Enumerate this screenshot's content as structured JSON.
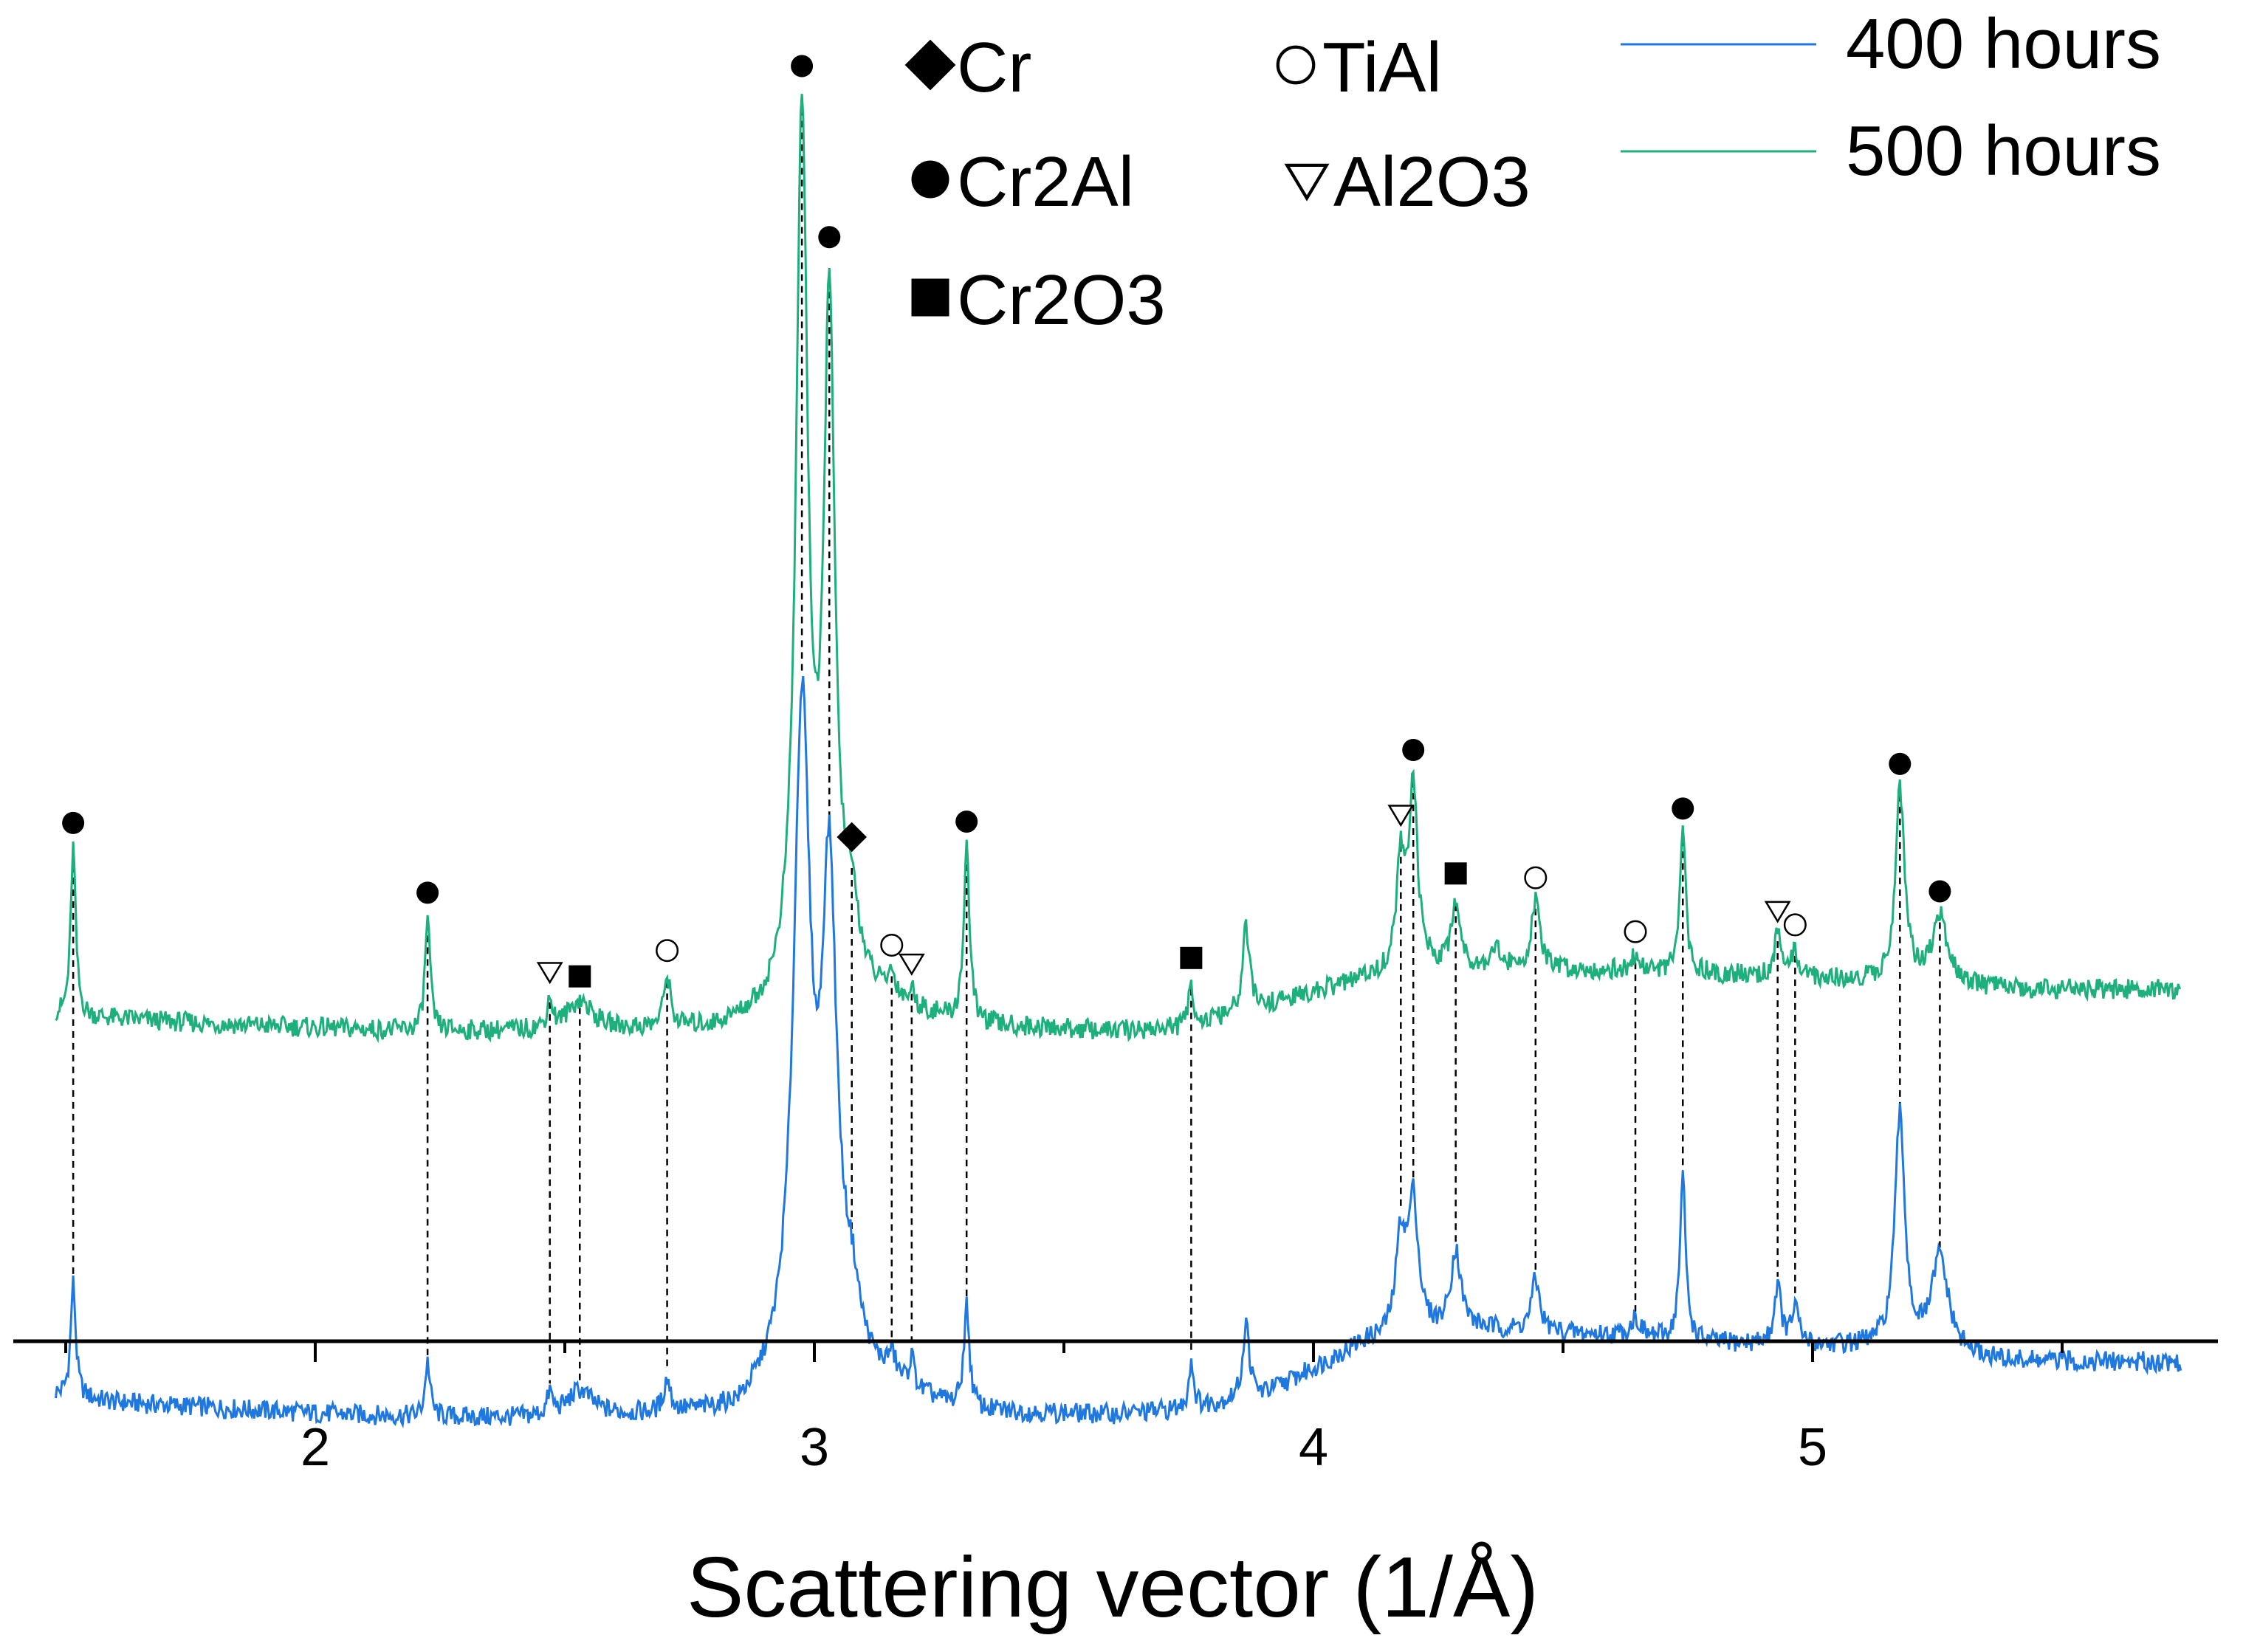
{
  "chart_data": {
    "type": "line",
    "title": "",
    "xlabel": "Scattering vector (1/Å)",
    "ylabel": "",
    "xlim": [
      1.45,
      5.75
    ],
    "x_ticks": [
      "2",
      "3",
      "4",
      "5"
    ],
    "y_axis_shown": false,
    "grid": false,
    "legend_placement": "top-right",
    "baseline_step": 0.01,
    "phases": [
      {
        "name": "Cr",
        "symbol": "diamond"
      },
      {
        "name": "TiAl",
        "symbol": "circle-open"
      },
      {
        "name": "Cr2Al",
        "symbol": "circle-filled"
      },
      {
        "name": "Al2O3",
        "symbol": "triangle-open"
      },
      {
        "name": "Cr2O3",
        "symbol": "square-filled"
      }
    ],
    "series": [
      {
        "name": "400 hours",
        "color": "#1f77e0",
        "baseline": [
          [
            1.45,
            1.45
          ],
          [
            1.6,
            1.2
          ],
          [
            1.8,
            1.05
          ],
          [
            2.0,
            0.9
          ],
          [
            2.2,
            0.8
          ],
          [
            2.4,
            0.75
          ],
          [
            2.6,
            0.8
          ],
          [
            2.85,
            0.85
          ],
          [
            3.0,
            2.2
          ],
          [
            3.1,
            1.7
          ],
          [
            3.3,
            0.9
          ],
          [
            3.6,
            0.85
          ],
          [
            3.75,
            1.0
          ],
          [
            3.9,
            1.4
          ],
          [
            4.1,
            2.8
          ],
          [
            4.3,
            3.2
          ],
          [
            4.6,
            3.0
          ],
          [
            4.8,
            2.8
          ],
          [
            5.1,
            2.7
          ],
          [
            5.4,
            2.3
          ],
          [
            5.75,
            2.3
          ]
        ],
        "peaks": [
          {
            "x": 1.515,
            "h": 3.1,
            "w": 0.006
          },
          {
            "x": 2.225,
            "h": 1.5,
            "w": 0.006
          },
          {
            "x": 2.47,
            "h": 0.6,
            "w": 0.006
          },
          {
            "x": 2.53,
            "h": 0.7,
            "w": 0.03
          },
          {
            "x": 2.705,
            "h": 0.9,
            "w": 0.008
          },
          {
            "x": 2.975,
            "h": 17.5,
            "w": 0.02
          },
          {
            "x": 3.03,
            "h": 12.5,
            "w": 0.018
          },
          {
            "x": 3.075,
            "h": 1.5,
            "w": 0.02
          },
          {
            "x": 3.155,
            "h": 0.6,
            "w": 0.01
          },
          {
            "x": 3.195,
            "h": 0.8,
            "w": 0.006
          },
          {
            "x": 3.305,
            "h": 2.8,
            "w": 0.007
          },
          {
            "x": 3.755,
            "h": 1.3,
            "w": 0.006
          },
          {
            "x": 3.865,
            "h": 2.0,
            "w": 0.008
          },
          {
            "x": 4.175,
            "h": 2.6,
            "w": 0.012
          },
          {
            "x": 4.2,
            "h": 3.5,
            "w": 0.012
          },
          {
            "x": 4.285,
            "h": 2.1,
            "w": 0.012
          },
          {
            "x": 4.445,
            "h": 1.4,
            "w": 0.01
          },
          {
            "x": 4.645,
            "h": 0.5,
            "w": 0.012
          },
          {
            "x": 4.74,
            "h": 4.4,
            "w": 0.007
          },
          {
            "x": 4.93,
            "h": 1.6,
            "w": 0.008
          },
          {
            "x": 4.965,
            "h": 1.0,
            "w": 0.008
          },
          {
            "x": 5.175,
            "h": 6.3,
            "w": 0.012
          },
          {
            "x": 5.255,
            "h": 2.6,
            "w": 0.02
          }
        ]
      },
      {
        "name": "500 hours",
        "color": "#1db07c",
        "baseline": [
          [
            1.45,
            11.7
          ],
          [
            1.6,
            11.6
          ],
          [
            1.8,
            11.45
          ],
          [
            2.0,
            11.35
          ],
          [
            2.2,
            11.25
          ],
          [
            2.5,
            11.25
          ],
          [
            2.8,
            11.3
          ],
          [
            2.9,
            11.6
          ],
          [
            3.0,
            12.6
          ],
          [
            3.1,
            12.1
          ],
          [
            3.3,
            11.4
          ],
          [
            3.6,
            11.25
          ],
          [
            3.75,
            11.35
          ],
          [
            4.0,
            12.3
          ],
          [
            4.2,
            13.0
          ],
          [
            4.6,
            12.9
          ],
          [
            5.0,
            12.7
          ],
          [
            5.4,
            12.4
          ],
          [
            5.75,
            12.4
          ]
        ],
        "peaks": [
          {
            "x": 1.515,
            "h": 4.6,
            "w": 0.006
          },
          {
            "x": 2.225,
            "h": 3.1,
            "w": 0.006
          },
          {
            "x": 2.47,
            "h": 0.8,
            "w": 0.006
          },
          {
            "x": 2.53,
            "h": 0.8,
            "w": 0.03
          },
          {
            "x": 2.705,
            "h": 1.4,
            "w": 0.008
          },
          {
            "x": 2.975,
            "h": 23.4,
            "w": 0.014
          },
          {
            "x": 3.03,
            "h": 18.0,
            "w": 0.013
          },
          {
            "x": 3.075,
            "h": 1.8,
            "w": 0.018
          },
          {
            "x": 3.155,
            "h": 0.6,
            "w": 0.01
          },
          {
            "x": 3.195,
            "h": 0.4,
            "w": 0.006
          },
          {
            "x": 3.305,
            "h": 4.8,
            "w": 0.007
          },
          {
            "x": 3.755,
            "h": 1.2,
            "w": 0.006
          },
          {
            "x": 3.865,
            "h": 2.3,
            "w": 0.008
          },
          {
            "x": 4.175,
            "h": 2.9,
            "w": 0.01
          },
          {
            "x": 4.2,
            "h": 4.8,
            "w": 0.01
          },
          {
            "x": 4.285,
            "h": 1.8,
            "w": 0.01
          },
          {
            "x": 4.365,
            "h": 0.6,
            "w": 0.01
          },
          {
            "x": 4.445,
            "h": 1.8,
            "w": 0.01
          },
          {
            "x": 4.645,
            "h": 0.4,
            "w": 0.01
          },
          {
            "x": 4.74,
            "h": 3.8,
            "w": 0.007
          },
          {
            "x": 4.93,
            "h": 1.1,
            "w": 0.008
          },
          {
            "x": 4.965,
            "h": 0.7,
            "w": 0.008
          },
          {
            "x": 5.175,
            "h": 5.2,
            "w": 0.011
          },
          {
            "x": 5.255,
            "h": 1.8,
            "w": 0.018
          }
        ]
      }
    ],
    "markers": [
      {
        "phase": "Cr2Al",
        "x": 1.515
      },
      {
        "phase": "Cr2Al",
        "x": 2.225
      },
      {
        "phase": "Al2O3",
        "x": 2.47
      },
      {
        "phase": "Cr2O3",
        "x": 2.53
      },
      {
        "phase": "TiAl",
        "x": 2.705
      },
      {
        "phase": "Cr2Al",
        "x": 2.975
      },
      {
        "phase": "Cr2Al",
        "x": 3.03
      },
      {
        "phase": "Cr",
        "x": 3.075
      },
      {
        "phase": "TiAl",
        "x": 3.155
      },
      {
        "phase": "Al2O3",
        "x": 3.195
      },
      {
        "phase": "Cr2Al",
        "x": 3.305
      },
      {
        "phase": "Cr2O3",
        "x": 3.755
      },
      {
        "phase": "Al2O3",
        "x": 4.175
      },
      {
        "phase": "Cr2Al",
        "x": 4.2
      },
      {
        "phase": "Cr2O3",
        "x": 4.285
      },
      {
        "phase": "TiAl",
        "x": 4.445
      },
      {
        "phase": "TiAl",
        "x": 4.645
      },
      {
        "phase": "Cr2Al",
        "x": 4.74
      },
      {
        "phase": "Al2O3",
        "x": 4.93
      },
      {
        "phase": "TiAl",
        "x": 4.965
      },
      {
        "phase": "Cr2Al",
        "x": 5.175
      },
      {
        "phase": "Cr2Al",
        "x": 5.255
      }
    ]
  }
}
